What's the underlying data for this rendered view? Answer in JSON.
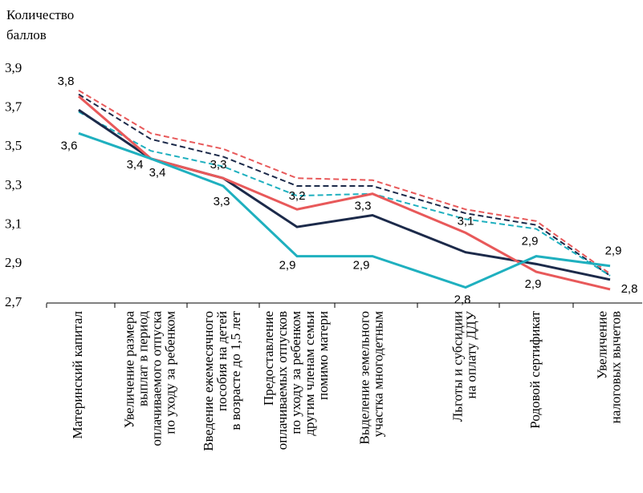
{
  "chart_data": {
    "type": "line",
    "y_label": [
      "Количество",
      "баллов"
    ],
    "categories": [
      [
        "Материнский капитал"
      ],
      [
        "Увеличение размера",
        "выплат в период",
        "оплачиваемого отпуска",
        "по уходу за ребенком"
      ],
      [
        "Введение ежемесячного",
        "пособия на детей",
        "в возрасте до 1,5 лет"
      ],
      [
        "Предоставление",
        "оплачиваемых отпусков",
        "по уходу за ребенком",
        "другим членам семьи",
        "помимо матери"
      ],
      [
        "Выделение земельного",
        "участка многодетным"
      ],
      [
        "Льготы и субсидии",
        "на оплату ДДУ"
      ],
      [
        "Родовой сертификат"
      ],
      [
        "Увеличение",
        "налоговых вычетов"
      ]
    ],
    "series": [
      {
        "color": "#e8595a",
        "dash": true,
        "values": [
          3.79,
          3.57,
          3.49,
          3.34,
          3.33,
          3.18,
          3.12,
          2.85
        ]
      },
      {
        "color": "#1c2a4a",
        "dash": true,
        "values": [
          3.77,
          3.54,
          3.45,
          3.3,
          3.3,
          3.16,
          3.1,
          2.84
        ]
      },
      {
        "color": "#1fb0bf",
        "dash": true,
        "values": [
          3.68,
          3.48,
          3.4,
          3.25,
          3.26,
          3.13,
          3.08,
          2.84
        ]
      },
      {
        "color": "#1c2a4a",
        "dash": false,
        "values": [
          3.69,
          3.44,
          3.34,
          3.09,
          3.15,
          2.96,
          2.9,
          2.82
        ]
      },
      {
        "color": "#e8595a",
        "dash": false,
        "values": [
          3.76,
          3.44,
          3.34,
          3.18,
          3.26,
          3.06,
          2.86,
          2.77
        ],
        "value_labels": [
          "3,8",
          "3,4",
          "3,3",
          "3,2",
          "3,3",
          "3,1",
          "2,9",
          "2,8"
        ]
      },
      {
        "color": "#1fb0bf",
        "dash": false,
        "values": [
          3.57,
          3.44,
          3.3,
          2.94,
          2.94,
          2.78,
          2.94,
          2.89
        ],
        "value_labels": [
          "3,6",
          "3,4",
          "3,3",
          "2,9",
          "2,9",
          "2,8",
          "2,9",
          "2,9"
        ]
      }
    ],
    "ylim": [
      2.7,
      3.9
    ],
    "yticks": [
      {
        "value": 2.7,
        "label": "2,7"
      },
      {
        "value": 2.9,
        "label": "2,9"
      },
      {
        "value": 3.1,
        "label": "3,1"
      },
      {
        "value": 3.3,
        "label": "3,3"
      },
      {
        "value": 3.5,
        "label": "3,5"
      },
      {
        "value": 3.7,
        "label": "3,7"
      },
      {
        "value": 3.9,
        "label": "3,9"
      }
    ],
    "grid": false
  }
}
